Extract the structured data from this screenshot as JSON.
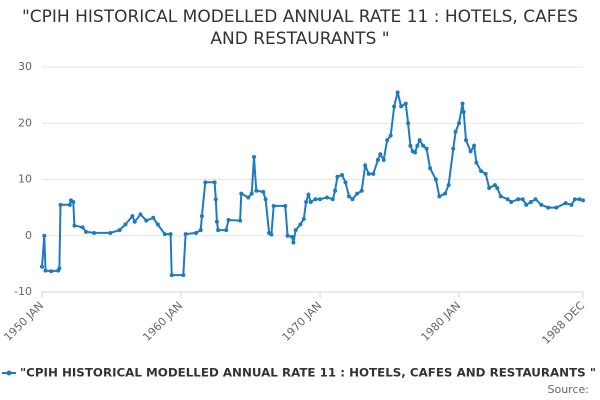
{
  "chart_data": {
    "type": "line",
    "title": "\"CPIH HISTORICAL MODELLED ANNUAL RATE 11 : HOTELS, CAFES AND RESTAURANTS \"",
    "source": "Source:",
    "x": [
      "1950 JAN",
      "1950 MAR",
      "1950 APR",
      "1950 SEP",
      "1951 MAR",
      "1951 APR",
      "1951 MAY",
      "1952 JAN",
      "1952 FEB",
      "1952 APR",
      "1952 MAY",
      "1952 DEC",
      "1953 MAR",
      "1953 OCT",
      "1954 DEC",
      "1955 AUG",
      "1956 JAN",
      "1956 JUL",
      "1956 SEP",
      "1957 FEB",
      "1957 JUL",
      "1958 JAN",
      "1958 MAY",
      "1958 NOV",
      "1959 APR",
      "1959 MAY",
      "1960 MAR",
      "1960 MAY",
      "1961 FEB",
      "1961 JUN",
      "1961 JUL",
      "1961 OCT",
      "1962 JUN",
      "1962 JUL",
      "1962 AUG",
      "1962 SEP",
      "1963 APR",
      "1963 JUN",
      "1964 APR",
      "1964 MAY",
      "1964 NOV",
      "1965 FEB",
      "1965 APR",
      "1965 JUN",
      "1965 DEC",
      "1966 FEB",
      "1966 MAY",
      "1966 JUL",
      "1966 SEP",
      "1967 JUL",
      "1967 SEP",
      "1968 JAN",
      "1968 FEB",
      "1968 APR",
      "1968 AUG",
      "1968 NOV",
      "1969 JAN",
      "1969 MAR",
      "1969 MAY",
      "1969 SEP",
      "1970 JAN",
      "1970 JUL",
      "1970 DEC",
      "1971 FEB",
      "1971 APR",
      "1971 AUG",
      "1971 NOV",
      "1972 FEB",
      "1972 MAY",
      "1972 SEP",
      "1973 JAN",
      "1973 APR",
      "1973 JUL",
      "1973 NOV",
      "1974 MAR",
      "1974 MAY",
      "1974 AUG",
      "1974 NOV",
      "1975 FEB",
      "1975 MAY",
      "1975 AUG",
      "1975 NOV",
      "1976 MAR",
      "1976 MAY",
      "1976 JUL",
      "1976 SEP",
      "1976 NOV",
      "1977 JAN",
      "1977 MAR",
      "1977 JUN",
      "1977 SEP",
      "1977 DEC",
      "1978 MAY",
      "1978 AUG",
      "1979 JAN",
      "1979 APR",
      "1979 AUG",
      "1979 OCT",
      "1980 JAN",
      "1980 APR",
      "1980 MAY",
      "1980 JUL",
      "1980 NOV",
      "1981 FEB",
      "1981 APR",
      "1981 AUG",
      "1981 DEC",
      "1982 MAR",
      "1982 AUG",
      "1982 OCT",
      "1983 JAN",
      "1983 JUL",
      "1983 OCT",
      "1984 APR",
      "1984 AUG",
      "1984 NOV",
      "1985 MAR",
      "1985 JUL",
      "1985 DEC",
      "1986 JUN",
      "1987 JAN",
      "1987 SEP",
      "1988 FEB",
      "1988 MAY",
      "1988 SEP",
      "1988 DEC"
    ],
    "series": [
      {
        "name": "\"CPIH HISTORICAL MODELLED ANNUAL RATE 11 : HOTELS, CAFES AND RESTAURANTS \"",
        "color": "#1f7bbf",
        "values": [
          -5.5,
          0,
          -6.2,
          -6.3,
          -6.2,
          -5.8,
          5.5,
          5.5,
          6.3,
          6,
          1.8,
          1.5,
          0.7,
          0.5,
          0.5,
          1,
          2,
          3.5,
          2.5,
          3.8,
          2.7,
          3.2,
          2,
          0.3,
          0.3,
          -7,
          -7,
          0.3,
          0.5,
          1,
          3.5,
          9.5,
          9.5,
          6.5,
          2.5,
          1,
          1,
          2.8,
          2.7,
          7.5,
          6.8,
          7.5,
          14,
          8,
          7.8,
          6.5,
          0.5,
          0.2,
          5.3,
          5.3,
          0,
          -0.2,
          -1.2,
          1,
          2,
          3,
          6,
          7.3,
          6,
          6.5,
          6.5,
          6.8,
          6.5,
          8,
          10.5,
          10.8,
          9.5,
          7,
          6.5,
          7.5,
          8,
          12.5,
          11,
          11,
          13.5,
          14.5,
          13.5,
          17,
          17.8,
          23,
          25.5,
          23,
          23.5,
          20,
          16,
          15,
          14.8,
          16,
          17,
          16,
          15.5,
          12,
          10,
          7,
          7.5,
          9,
          15.5,
          18.5,
          20,
          23.5,
          22,
          17,
          15,
          16,
          13,
          11.5,
          11,
          8.5,
          9,
          8.5,
          7,
          6.5,
          6,
          6.5,
          6.5,
          5.5,
          6,
          6.5,
          5.5,
          5,
          5,
          5.8,
          5.5,
          6.5,
          6.5,
          6.3
        ]
      }
    ],
    "ylim": [
      -10,
      30
    ],
    "yticks": [
      -10,
      0,
      10,
      20,
      30
    ],
    "xticks": [
      "1950 JAN",
      "1960 JAN",
      "1970 JAN",
      "1980 JAN",
      "1988 DEC"
    ],
    "grid": true
  }
}
